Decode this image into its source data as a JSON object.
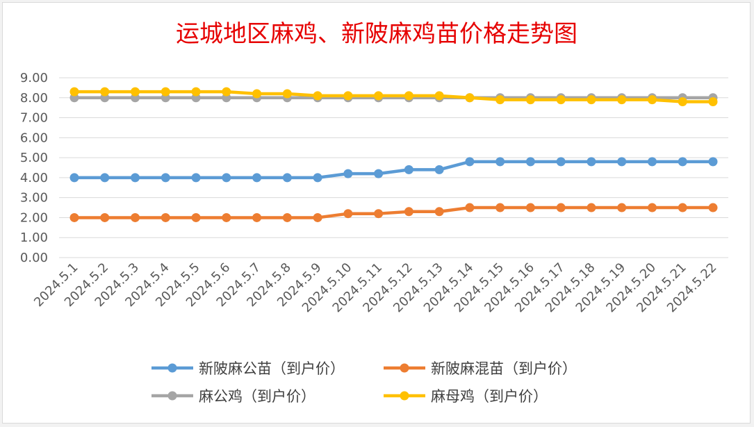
{
  "chart_data": {
    "type": "line",
    "title": "运城地区麻鸡、新陂麻鸡苗价格走势图",
    "xlabel": "",
    "ylabel": "",
    "ylim": [
      0,
      9
    ],
    "yticks": [
      "0.00",
      "1.00",
      "2.00",
      "3.00",
      "4.00",
      "5.00",
      "6.00",
      "7.00",
      "8.00",
      "9.00"
    ],
    "grid": true,
    "legend_position": "bottom",
    "categories": [
      "2024.5.1",
      "2024.5.2",
      "2024.5.3",
      "2024.5.4",
      "2024.5.5",
      "2024.5.6",
      "2024.5.7",
      "2024.5.8",
      "2024.5.9",
      "2024.5.10",
      "2024.5.11",
      "2024.5.12",
      "2024.5.13",
      "2024.5.14",
      "2024.5.15",
      "2024.5.16",
      "2024.5.17",
      "2024.5.18",
      "2024.5.19",
      "2024.5.20",
      "2024.5.21",
      "2024.5.22"
    ],
    "series": [
      {
        "name": "新陂麻公苗（到户价）",
        "color": "#5b9bd5",
        "values": [
          4.0,
          4.0,
          4.0,
          4.0,
          4.0,
          4.0,
          4.0,
          4.0,
          4.0,
          4.2,
          4.2,
          4.4,
          4.4,
          4.8,
          4.8,
          4.8,
          4.8,
          4.8,
          4.8,
          4.8,
          4.8,
          4.8
        ]
      },
      {
        "name": "新陂麻混苗（到户价）",
        "color": "#ed7d31",
        "values": [
          2.0,
          2.0,
          2.0,
          2.0,
          2.0,
          2.0,
          2.0,
          2.0,
          2.0,
          2.2,
          2.2,
          2.3,
          2.3,
          2.5,
          2.5,
          2.5,
          2.5,
          2.5,
          2.5,
          2.5,
          2.5,
          2.5
        ]
      },
      {
        "name": "麻公鸡（到户价）",
        "color": "#a5a5a5",
        "values": [
          8.0,
          8.0,
          8.0,
          8.0,
          8.0,
          8.0,
          8.0,
          8.0,
          8.0,
          8.0,
          8.0,
          8.0,
          8.0,
          8.0,
          8.0,
          8.0,
          8.0,
          8.0,
          8.0,
          8.0,
          8.0,
          8.0
        ]
      },
      {
        "name": "麻母鸡（到户价）",
        "color": "#ffc000",
        "values": [
          8.3,
          8.3,
          8.3,
          8.3,
          8.3,
          8.3,
          8.2,
          8.2,
          8.1,
          8.1,
          8.1,
          8.1,
          8.1,
          8.0,
          7.9,
          7.9,
          7.9,
          7.9,
          7.9,
          7.9,
          7.8,
          7.8
        ]
      }
    ]
  }
}
